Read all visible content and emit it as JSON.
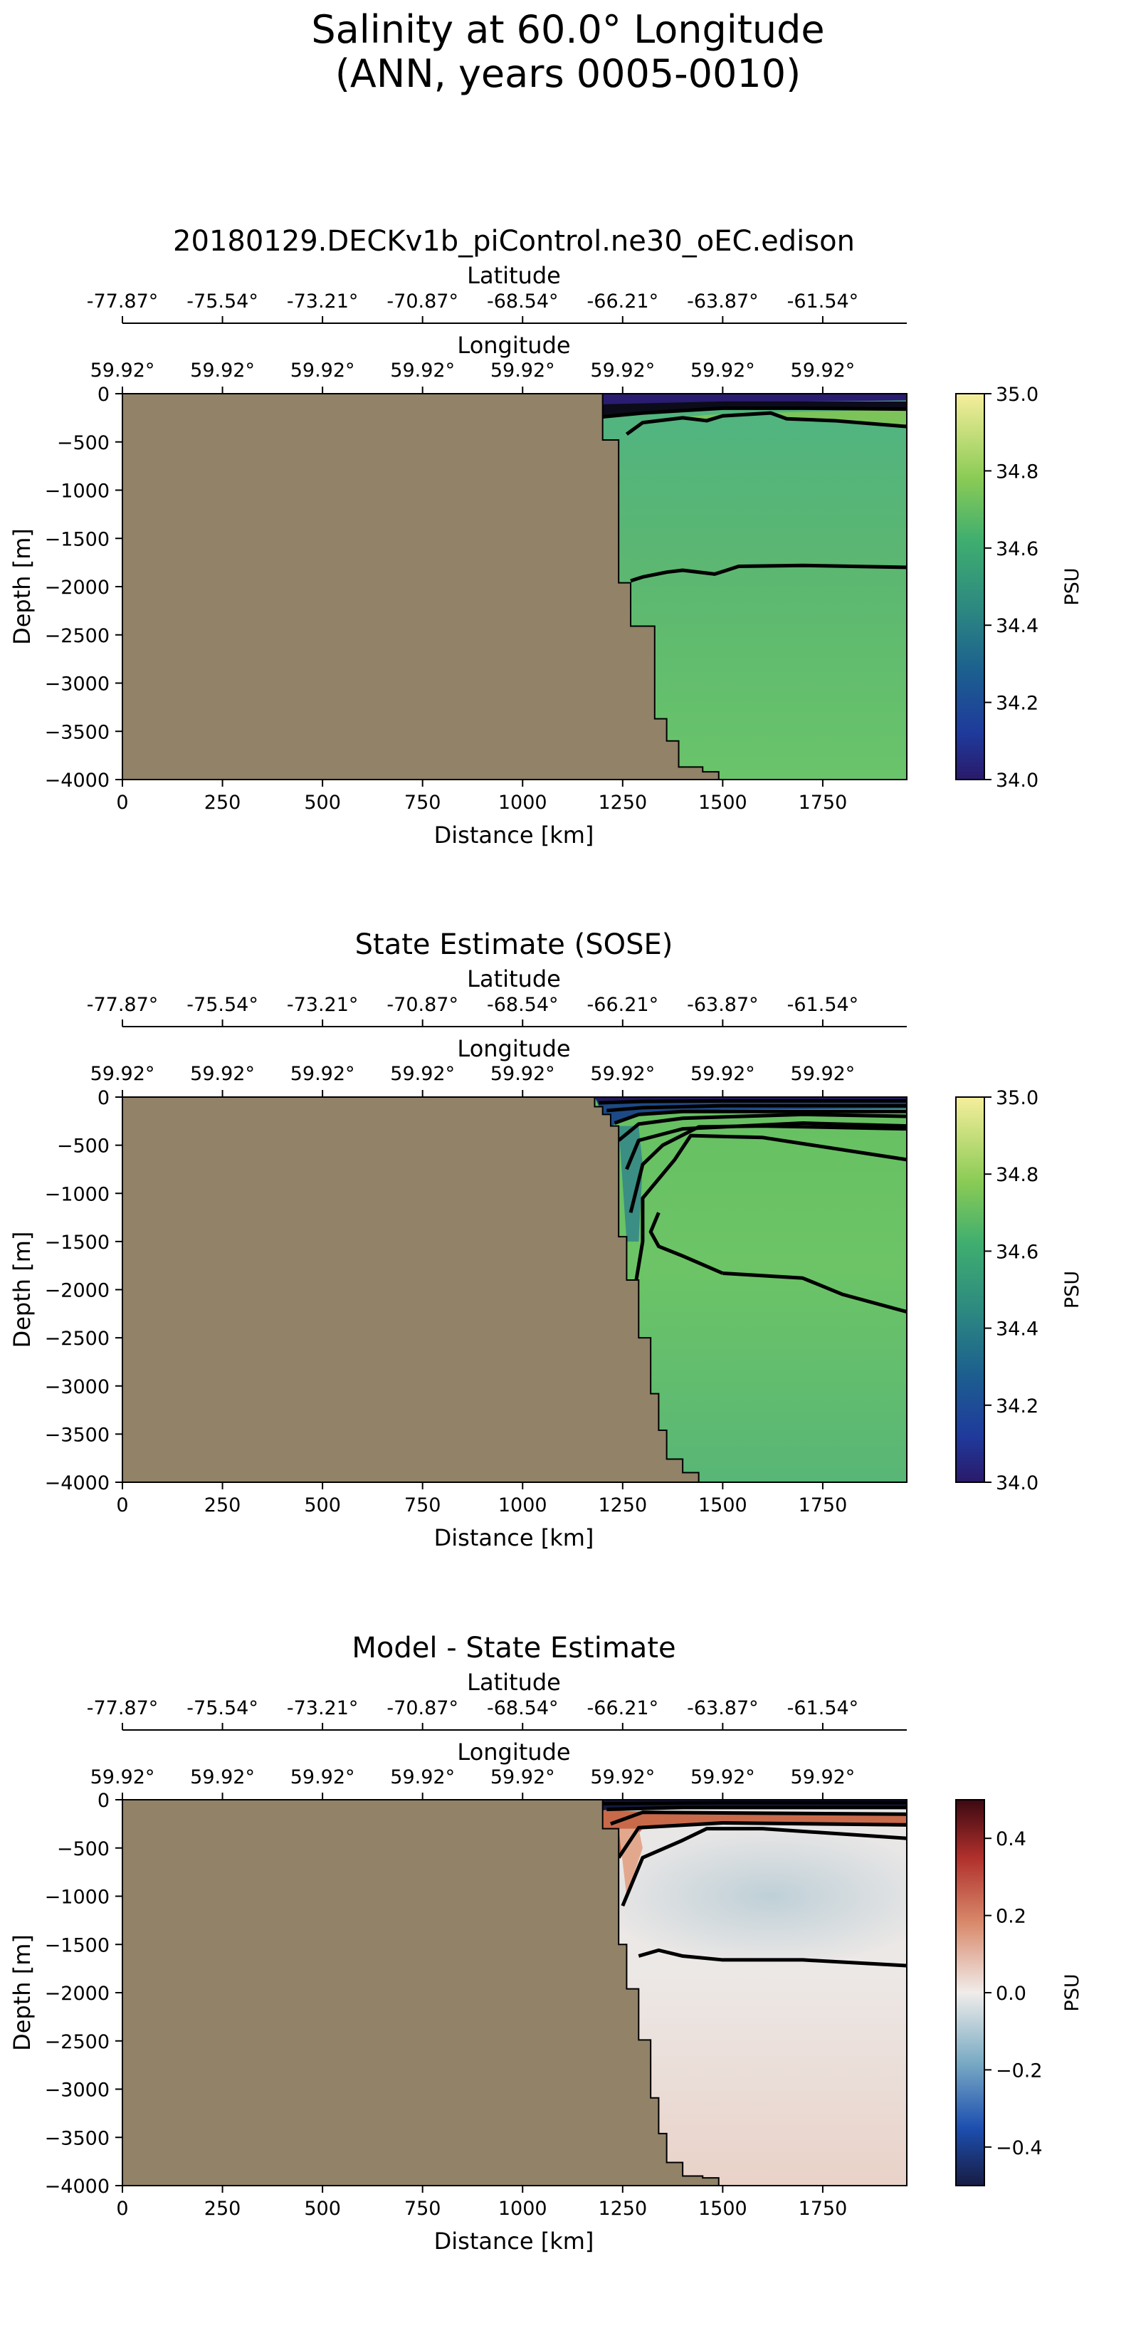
{
  "figure": {
    "suptitle_line1": "Salinity at 60.0° Longitude",
    "suptitle_line2": "(ANN, years 0005-0010)"
  },
  "chart_data": [
    {
      "type": "heatmap",
      "title": "20180129.DECKv1b_piControl.ne30_oEC.edison",
      "xlabel": "Distance [km]",
      "ylabel": "Depth [m]",
      "xlim": [
        0,
        1960
      ],
      "ylim": [
        -4000,
        0
      ],
      "x_ticks": [
        0,
        250,
        500,
        750,
        1000,
        1250,
        1500,
        1750
      ],
      "y_ticks": [
        0,
        -500,
        -1000,
        -1500,
        -2000,
        -2500,
        -3000,
        -3500,
        -4000
      ],
      "top_axis_latitude": {
        "label": "Latitude",
        "ticks": [
          "-77.87°",
          "-75.54°",
          "-73.21°",
          "-70.87°",
          "-68.54°",
          "-66.21°",
          "-63.87°",
          "-61.54°"
        ]
      },
      "top_axis_longitude": {
        "label": "Longitude",
        "ticks": [
          "59.92°",
          "59.92°",
          "59.92°",
          "59.92°",
          "59.92°",
          "59.92°",
          "59.92°",
          "59.92°"
        ]
      },
      "colormap": "haline",
      "colorbar": {
        "label": "PSU",
        "range": [
          34.0,
          35.0
        ],
        "ticks": [
          "34.0",
          "34.2",
          "34.4",
          "34.6",
          "34.8",
          "35.0"
        ]
      },
      "land_mask_colour": "#918268",
      "bathymetry": [
        [
          1200,
          0
        ],
        [
          1200,
          -480
        ],
        [
          1240,
          -480
        ],
        [
          1240,
          -1960
        ],
        [
          1270,
          -1960
        ],
        [
          1270,
          -2410
        ],
        [
          1330,
          -2410
        ],
        [
          1330,
          -3370
        ],
        [
          1360,
          -3370
        ],
        [
          1360,
          -3600
        ],
        [
          1390,
          -3600
        ],
        [
          1390,
          -3870
        ],
        [
          1450,
          -3870
        ],
        [
          1450,
          -3920
        ],
        [
          1490,
          -3920
        ],
        [
          1490,
          -4000
        ]
      ],
      "background_value": 34.68,
      "contours": [
        [
          [
            1200,
            -240
          ],
          [
            1300,
            -200
          ],
          [
            1500,
            -150
          ],
          [
            1700,
            -150
          ],
          [
            1960,
            -160
          ]
        ],
        [
          [
            1260,
            -420
          ],
          [
            1300,
            -300
          ],
          [
            1400,
            -250
          ],
          [
            1460,
            -280
          ],
          [
            1500,
            -230
          ],
          [
            1620,
            -200
          ],
          [
            1660,
            -260
          ],
          [
            1780,
            -280
          ],
          [
            1960,
            -340
          ]
        ],
        [
          [
            1270,
            -1940
          ],
          [
            1300,
            -1900
          ],
          [
            1360,
            -1850
          ],
          [
            1400,
            -1830
          ],
          [
            1480,
            -1870
          ],
          [
            1540,
            -1790
          ],
          [
            1700,
            -1780
          ],
          [
            1960,
            -1800
          ]
        ]
      ]
    },
    {
      "type": "heatmap",
      "title": "State Estimate (SOSE)",
      "xlabel": "Distance [km]",
      "ylabel": "Depth [m]",
      "xlim": [
        0,
        1960
      ],
      "ylim": [
        -4000,
        0
      ],
      "x_ticks": [
        0,
        250,
        500,
        750,
        1000,
        1250,
        1500,
        1750
      ],
      "y_ticks": [
        0,
        -500,
        -1000,
        -1500,
        -2000,
        -2500,
        -3000,
        -3500,
        -4000
      ],
      "top_axis_latitude": {
        "label": "Latitude",
        "ticks": [
          "-77.87°",
          "-75.54°",
          "-73.21°",
          "-70.87°",
          "-68.54°",
          "-66.21°",
          "-63.87°",
          "-61.54°"
        ]
      },
      "top_axis_longitude": {
        "label": "Longitude",
        "ticks": [
          "59.92°",
          "59.92°",
          "59.92°",
          "59.92°",
          "59.92°",
          "59.92°",
          "59.92°",
          "59.92°"
        ]
      },
      "colormap": "haline",
      "colorbar": {
        "label": "PSU",
        "range": [
          34.0,
          35.0
        ],
        "ticks": [
          "34.0",
          "34.2",
          "34.4",
          "34.6",
          "34.8",
          "35.0"
        ]
      },
      "land_mask_colour": "#918268",
      "bathymetry": [
        [
          1180,
          0
        ],
        [
          1180,
          -100
        ],
        [
          1200,
          -100
        ],
        [
          1200,
          -180
        ],
        [
          1220,
          -180
        ],
        [
          1220,
          -300
        ],
        [
          1240,
          -300
        ],
        [
          1240,
          -1450
        ],
        [
          1260,
          -1450
        ],
        [
          1260,
          -1900
        ],
        [
          1290,
          -1900
        ],
        [
          1290,
          -2500
        ],
        [
          1320,
          -2500
        ],
        [
          1320,
          -3080
        ],
        [
          1340,
          -3080
        ],
        [
          1340,
          -3460
        ],
        [
          1360,
          -3460
        ],
        [
          1360,
          -3760
        ],
        [
          1400,
          -3760
        ],
        [
          1400,
          -3900
        ],
        [
          1440,
          -3900
        ],
        [
          1440,
          -4000
        ]
      ],
      "background_value": 34.64,
      "contours": [
        [
          [
            1190,
            -60
          ],
          [
            1300,
            -45
          ],
          [
            1500,
            -40
          ],
          [
            1960,
            -40
          ]
        ],
        [
          [
            1210,
            -140
          ],
          [
            1300,
            -110
          ],
          [
            1500,
            -90
          ],
          [
            1960,
            -90
          ]
        ],
        [
          [
            1230,
            -270
          ],
          [
            1290,
            -180
          ],
          [
            1400,
            -150
          ],
          [
            1960,
            -150
          ]
        ],
        [
          [
            1240,
            -450
          ],
          [
            1290,
            -280
          ],
          [
            1400,
            -220
          ],
          [
            1700,
            -180
          ],
          [
            1960,
            -200
          ]
        ],
        [
          [
            1260,
            -750
          ],
          [
            1290,
            -450
          ],
          [
            1400,
            -330
          ],
          [
            1700,
            -270
          ],
          [
            1960,
            -300
          ]
        ],
        [
          [
            1270,
            -1200
          ],
          [
            1300,
            -700
          ],
          [
            1350,
            -500
          ],
          [
            1440,
            -310
          ],
          [
            1600,
            -300
          ],
          [
            1960,
            -330
          ]
        ],
        [
          [
            1280,
            -2000
          ],
          [
            1300,
            -1500
          ],
          [
            1300,
            -1050
          ],
          [
            1380,
            -650
          ],
          [
            1420,
            -400
          ],
          [
            1600,
            -420
          ],
          [
            1960,
            -650
          ]
        ],
        [
          [
            1500,
            -1830
          ],
          [
            1400,
            -1650
          ],
          [
            1340,
            -1550
          ],
          [
            1320,
            -1400
          ],
          [
            1340,
            -1200
          ]
        ],
        [
          [
            1500,
            -1830
          ],
          [
            1700,
            -1880
          ],
          [
            1800,
            -2050
          ],
          [
            1960,
            -2230
          ]
        ]
      ]
    },
    {
      "type": "heatmap",
      "title": "Model - State Estimate",
      "xlabel": "Distance [km]",
      "ylabel": "Depth [m]",
      "xlim": [
        0,
        1960
      ],
      "ylim": [
        -4000,
        0
      ],
      "x_ticks": [
        0,
        250,
        500,
        750,
        1000,
        1250,
        1500,
        1750
      ],
      "y_ticks": [
        0,
        -500,
        -1000,
        -1500,
        -2000,
        -2500,
        -3000,
        -3500,
        -4000
      ],
      "top_axis_latitude": {
        "label": "Latitude",
        "ticks": [
          "-77.87°",
          "-75.54°",
          "-73.21°",
          "-70.87°",
          "-68.54°",
          "-66.21°",
          "-63.87°",
          "-61.54°"
        ]
      },
      "top_axis_longitude": {
        "label": "Longitude",
        "ticks": [
          "59.92°",
          "59.92°",
          "59.92°",
          "59.92°",
          "59.92°",
          "59.92°",
          "59.92°",
          "59.92°"
        ]
      },
      "colormap": "balance",
      "colorbar": {
        "label": "PSU",
        "range": [
          -0.5,
          0.5
        ],
        "ticks": [
          "−0.4",
          "−0.2",
          "0.0",
          "0.2",
          "0.4"
        ]
      },
      "land_mask_colour": "#918268",
      "bathymetry": [
        [
          1200,
          0
        ],
        [
          1200,
          -300
        ],
        [
          1240,
          -300
        ],
        [
          1240,
          -1500
        ],
        [
          1260,
          -1500
        ],
        [
          1260,
          -1960
        ],
        [
          1290,
          -1960
        ],
        [
          1290,
          -2490
        ],
        [
          1320,
          -2490
        ],
        [
          1320,
          -3090
        ],
        [
          1340,
          -3090
        ],
        [
          1340,
          -3460
        ],
        [
          1360,
          -3460
        ],
        [
          1360,
          -3760
        ],
        [
          1400,
          -3760
        ],
        [
          1400,
          -3900
        ],
        [
          1450,
          -3900
        ],
        [
          1450,
          -3920
        ],
        [
          1490,
          -3920
        ],
        [
          1490,
          -4000
        ]
      ],
      "background_value": 0.04,
      "contours": [
        [
          [
            1200,
            -40
          ],
          [
            1500,
            -30
          ],
          [
            1960,
            -30
          ]
        ],
        [
          [
            1210,
            -100
          ],
          [
            1400,
            -80
          ],
          [
            1960,
            -80
          ]
        ],
        [
          [
            1220,
            -250
          ],
          [
            1300,
            -130
          ],
          [
            1960,
            -150
          ]
        ],
        [
          [
            1240,
            -600
          ],
          [
            1290,
            -290
          ],
          [
            1500,
            -240
          ],
          [
            1960,
            -260
          ]
        ],
        [
          [
            1250,
            -1100
          ],
          [
            1300,
            -600
          ],
          [
            1400,
            -420
          ],
          [
            1460,
            -300
          ],
          [
            1600,
            -300
          ],
          [
            1960,
            -400
          ]
        ],
        [
          [
            1290,
            -1620
          ],
          [
            1340,
            -1560
          ],
          [
            1400,
            -1620
          ],
          [
            1500,
            -1660
          ],
          [
            1700,
            -1660
          ],
          [
            1960,
            -1720
          ]
        ]
      ]
    }
  ]
}
